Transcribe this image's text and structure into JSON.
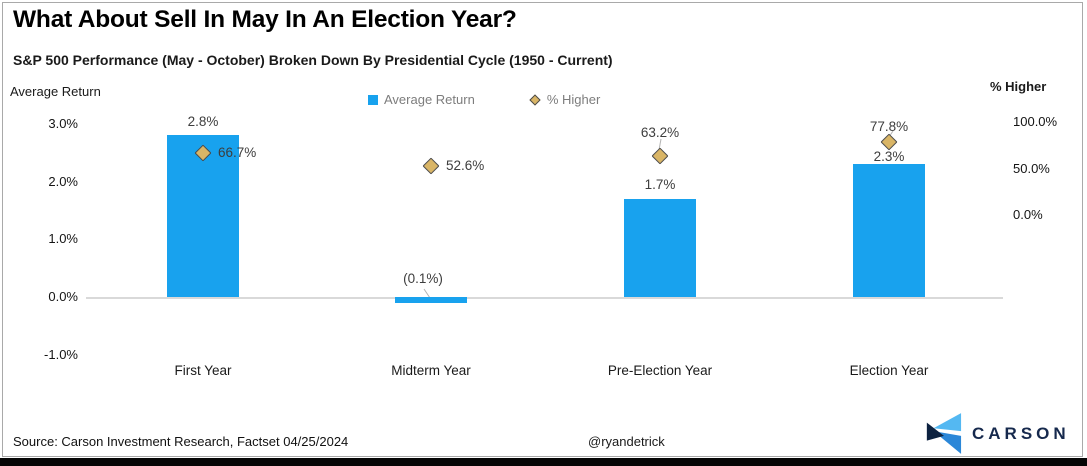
{
  "header": {
    "title": "What About Sell In May In An Election Year?",
    "subtitle": "S&P 500 Performance (May - October) Broken Down By Presidential Cycle (1950 - Current)"
  },
  "legend": {
    "items": [
      {
        "label": "Average Return",
        "marker": "square",
        "color": "#18A2EE"
      },
      {
        "label": "% Higher",
        "marker": "diamond",
        "color": "#D9B566"
      }
    ]
  },
  "colors": {
    "bar": "#18A2EE",
    "diamond_fill": "#D9B566",
    "diamond_border": "#4a4a4a",
    "zero_line": "#d9d9d9",
    "brand_navy": "#16294d",
    "brand_light_blue": "#54B8F2",
    "brand_mid_blue": "#2B87D8"
  },
  "chart_data": {
    "type": "bar",
    "subtype": "combo-bar-with-diamond-markers",
    "title": "What About Sell In May In An Election Year?",
    "subtitle": "S&P 500 Performance (May - October) Broken Down By Presidential Cycle (1950 - Current)",
    "categories": [
      "First Year",
      "Midterm Year",
      "Pre-Election Year",
      "Election Year"
    ],
    "series": [
      {
        "name": "Average Return",
        "type": "bar",
        "axis": "left",
        "color": "#18A2EE",
        "values": [
          2.8,
          -0.1,
          1.7,
          2.3
        ],
        "labels": [
          "2.8%",
          "(0.1%)",
          "1.7%",
          "2.3%"
        ]
      },
      {
        "name": "% Higher",
        "type": "scatter",
        "marker": "diamond",
        "axis": "right",
        "color": "#D9B566",
        "values": [
          66.7,
          52.6,
          63.2,
          77.8
        ],
        "labels": [
          "66.7%",
          "52.6%",
          "63.2%",
          "77.8%"
        ]
      }
    ],
    "left_axis": {
      "label": "Average Return",
      "ticks": [
        3.0,
        2.0,
        1.0,
        0.0,
        -1.0
      ],
      "range": [
        -1.5,
        3.3
      ],
      "format": "percent"
    },
    "right_axis": {
      "label": "% Higher",
      "ticks": [
        100.0,
        50.0,
        0.0
      ],
      "format": "percent"
    },
    "grid": false,
    "legend_position": "top-center"
  },
  "footer": {
    "source": "Source: Carson Investment Research, Factset 04/25/2024",
    "handle": "@ryandetrick",
    "brand": "CARSON"
  }
}
